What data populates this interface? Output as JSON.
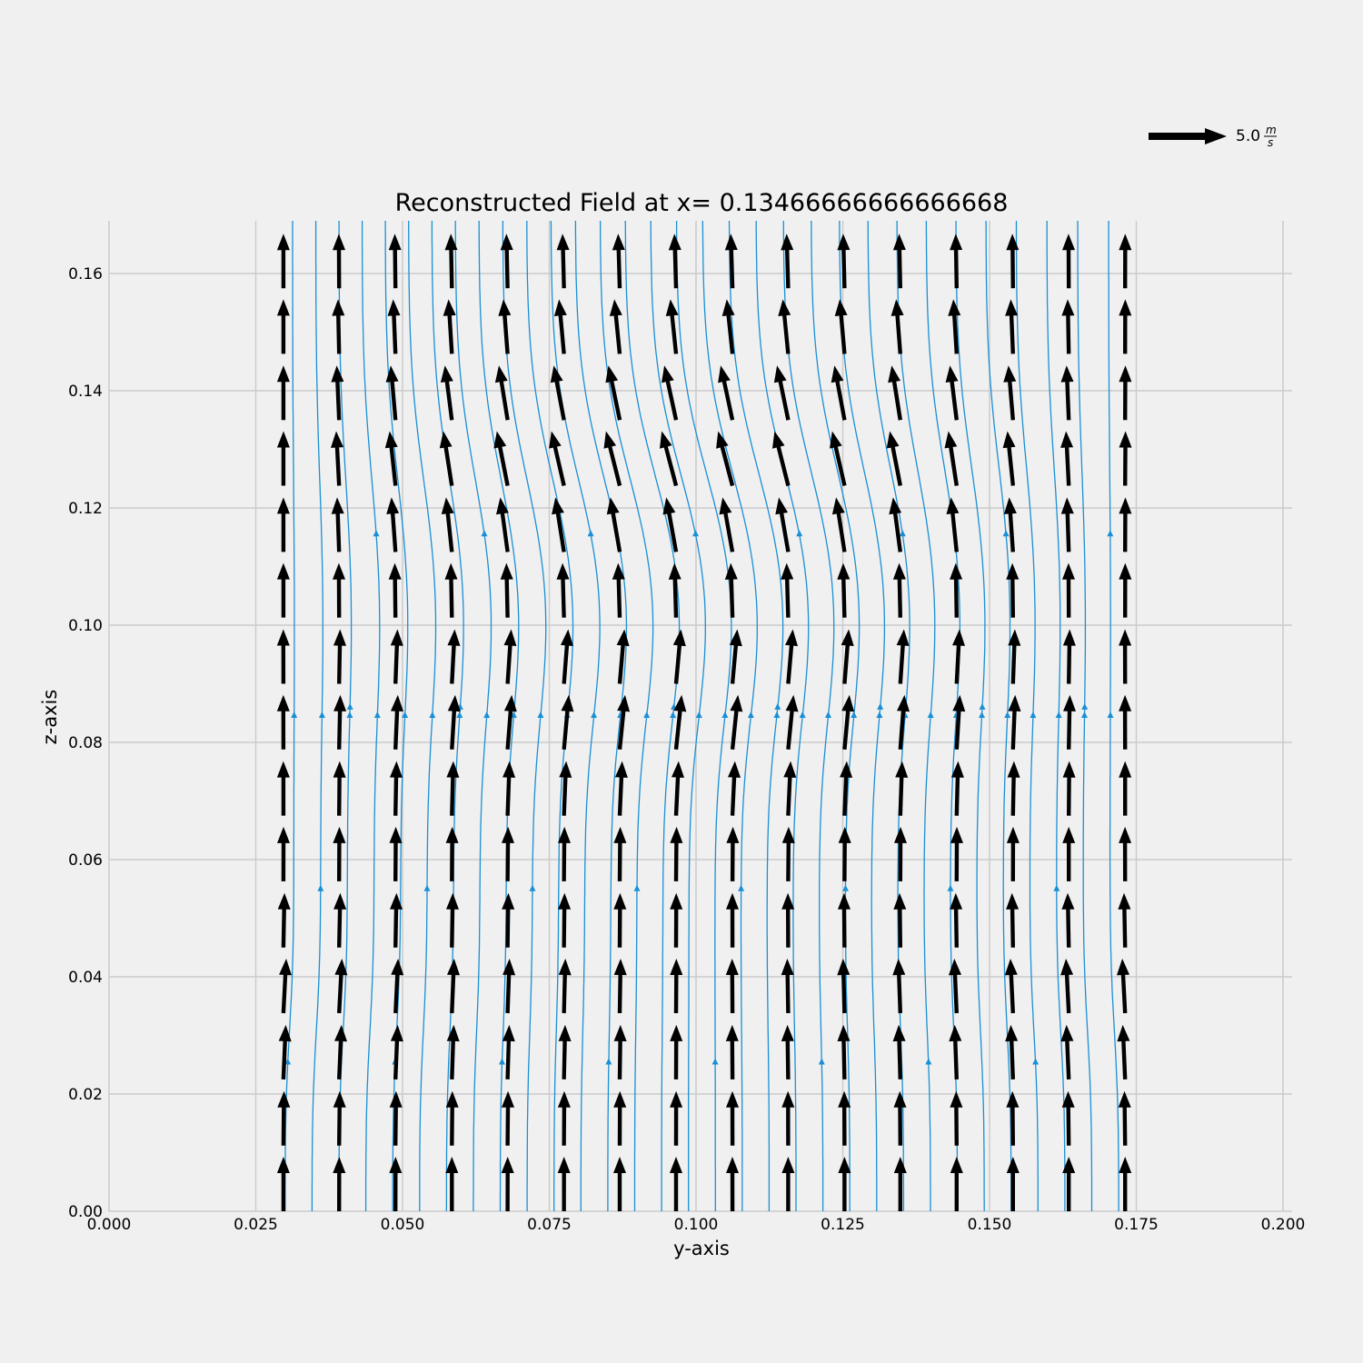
{
  "chart_data": {
    "type": "quiver",
    "title": "Reconstructed Field at x= 0.13466666666666668",
    "xlabel": "y-axis",
    "ylabel": "z-axis",
    "xlim": [
      0.0,
      0.2
    ],
    "ylim": [
      0.0,
      0.169
    ],
    "xticks": [
      "0.000",
      "0.025",
      "0.050",
      "0.075",
      "0.100",
      "0.125",
      "0.150",
      "0.175",
      "0.200"
    ],
    "yticks": [
      "0.00",
      "0.02",
      "0.04",
      "0.06",
      "0.08",
      "0.10",
      "0.12",
      "0.14",
      "0.16"
    ],
    "grid": true,
    "quiver_key": {
      "value": 5.0,
      "label": "5.0",
      "unit_num": "m",
      "unit_den": "s",
      "placement": "top-right"
    },
    "vector_grid": {
      "y_values": [
        0.0297,
        0.0392,
        0.0488,
        0.0584,
        0.0679,
        0.0775,
        0.087,
        0.0966,
        0.1062,
        0.1157,
        0.1253,
        0.1348,
        0.1444,
        0.154,
        0.1635,
        0.1731
      ],
      "z_values": [
        0.0,
        0.0112,
        0.0225,
        0.0338,
        0.045,
        0.0563,
        0.0675,
        0.0788,
        0.09,
        0.1013,
        0.1125,
        0.1238,
        0.135,
        0.1463,
        0.1575
      ],
      "w_speed": 4.5,
      "v_peak": 1.2
    },
    "streamlines": {
      "color": "#1a8fd4",
      "count": 32,
      "y_start": 0.03,
      "y_end": 0.172
    },
    "colors": {
      "arrow": "#000000",
      "streamline": "#1a8fd4",
      "grid": "#cbcbcb",
      "background": "#f0f0f0"
    }
  }
}
